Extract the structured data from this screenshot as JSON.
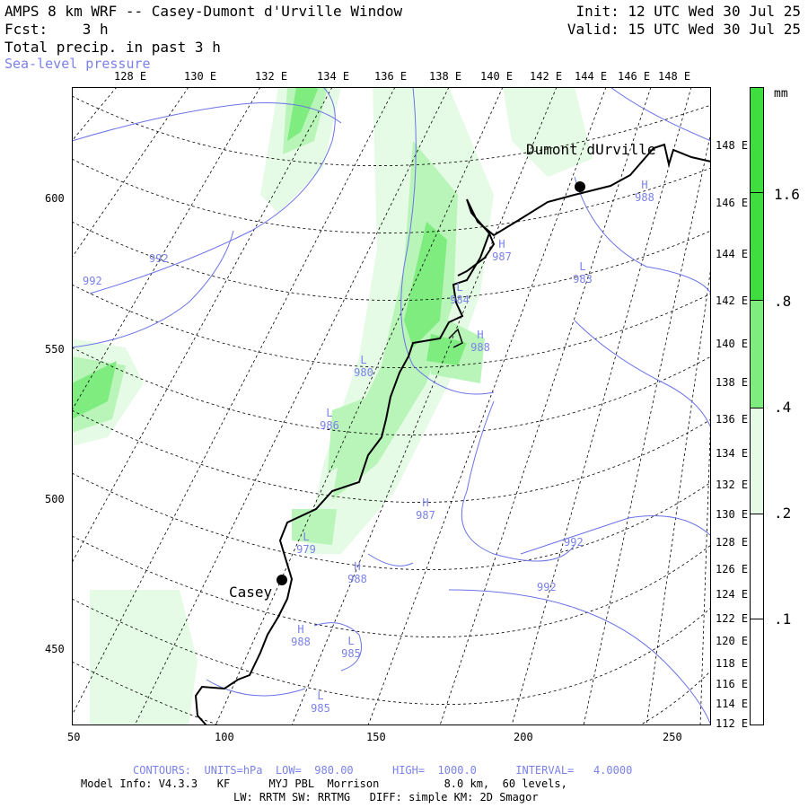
{
  "header": {
    "title": "AMPS 8 km WRF -- Casey-Dumont d'Urville Window",
    "forecast": "Fcst:    3 h",
    "field": "Total precip. in past 3 h",
    "overlay": "Sea-level pressure",
    "init": "Init: 12 UTC Wed 30 Jul 25",
    "valid": "Valid: 15 UTC Wed 30 Jul 25"
  },
  "top_axis": [
    "128 E",
    "130 E",
    "132 E",
    "134 E",
    "136 E",
    "138 E",
    "140 E",
    "142 E",
    "144 E",
    "146 E",
    "148 E"
  ],
  "right_axis": [
    "148 E",
    "146 E",
    "144 E",
    "142 E",
    "140 E",
    "138 E",
    "136 E",
    "134 E",
    "132 E",
    "130 E",
    "128 E",
    "126 E",
    "124 E",
    "122 E",
    "120 E",
    "118 E",
    "116 E",
    "114 E",
    "112 E"
  ],
  "left_axis": [
    "600",
    "550",
    "500",
    "450"
  ],
  "bottom_axis": [
    "50",
    "100",
    "150",
    "200",
    "250"
  ],
  "legend": {
    "unit": "mm",
    "levels": [
      ".1",
      ".2",
      ".4",
      ".8",
      "1.6"
    ],
    "colors": [
      "#ffffff",
      "#e6fbe6",
      "#b9f5b9",
      "#7fec7f",
      "#40dd40"
    ]
  },
  "stations": [
    {
      "name": "Casey"
    },
    {
      "name": "Dumont dUrville"
    }
  ],
  "pressure_labels": [
    {
      "text": "992"
    },
    {
      "text": "992"
    },
    {
      "text": "H 987"
    },
    {
      "text": "L 984"
    },
    {
      "text": "H 988"
    },
    {
      "text": "L 983"
    },
    {
      "text": "H 988"
    },
    {
      "text": "L 980"
    },
    {
      "text": "L 986"
    },
    {
      "text": "H 987"
    },
    {
      "text": "L 979"
    },
    {
      "text": "H 988"
    },
    {
      "text": "992"
    },
    {
      "text": "992"
    },
    {
      "text": "H 988"
    },
    {
      "text": "L 985"
    },
    {
      "text": "L 985"
    }
  ],
  "footer": {
    "contours": "CONTOURS:  UNITS=hPa  LOW=  980.00      HIGH=  1000.0      INTERVAL=   4.0000",
    "model": "Model Info: V4.3.3   KF      MYJ PBL  Morrison          8.0 km,  60 levels,",
    "physics": "LW: RRTM SW: RRTMG   DIFF: simple KM: 2D Smagor"
  }
}
